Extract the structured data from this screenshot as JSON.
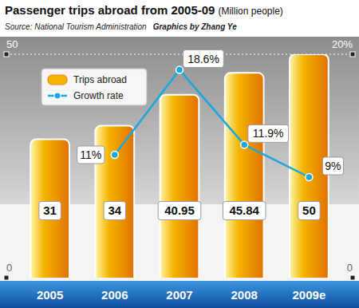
{
  "chart_data": {
    "type": "bar",
    "title": "Passenger trips abroad from 2005-09",
    "subtitle": "(Million people)",
    "annotations": [
      "Source: National Tourism Administration",
      "Graphics by Zhang Ye"
    ],
    "categories": [
      "2005",
      "2006",
      "2007",
      "2008",
      "2009e"
    ],
    "series": [
      {
        "name": "Trips abroad",
        "type": "bar",
        "color": "#f4b400",
        "values": [
          31,
          34,
          40.95,
          45.84,
          50
        ]
      },
      {
        "name": "Growth rate",
        "type": "line",
        "color": "#1aa7e0",
        "axis": "y2",
        "marker": "circle",
        "values": [
          null,
          11,
          18.6,
          11.9,
          9
        ],
        "value_labels": [
          null,
          "11%",
          "18.6%",
          "11.9%",
          "9%"
        ]
      }
    ],
    "ylim": [
      0,
      50
    ],
    "yticks": [
      0,
      50
    ],
    "y2lim": [
      0,
      20
    ],
    "y2ticks": [
      0,
      {
        "value": 20,
        "label": "20%"
      }
    ],
    "grid": true,
    "legend": "top-left",
    "data_labels": true
  }
}
